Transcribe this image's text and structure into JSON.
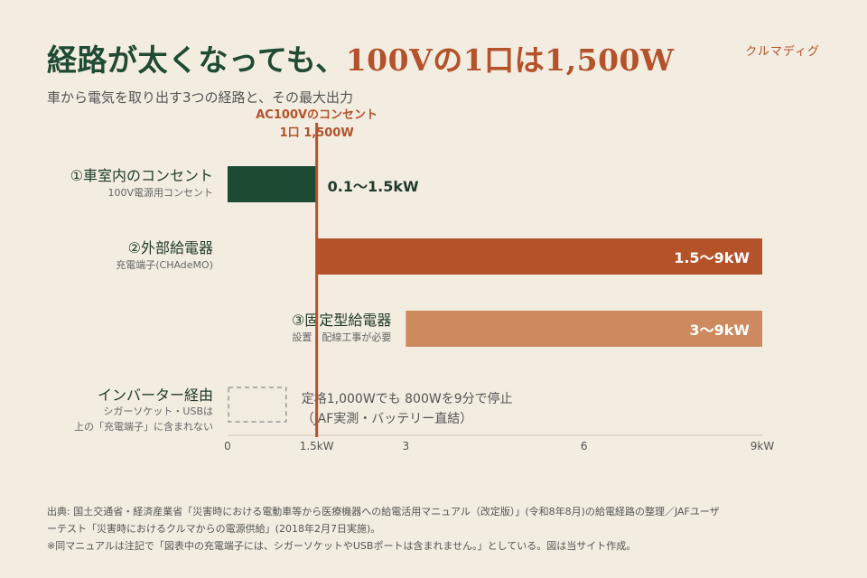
{
  "header": {
    "title_main": "経路が太くなっても、",
    "title_accent": "100Vの1口は1,500W",
    "subtitle": "車から電気を取り出す3つの経路と、その最大出力",
    "brand": "クルマディグ"
  },
  "colors": {
    "dark_green": "#1d4a33",
    "rust": "#b4522a",
    "light_orange": "#cd8a5e",
    "dashed": "#999999",
    "background": "#f3ece1"
  },
  "chart_data": {
    "type": "bar",
    "orientation": "horizontal",
    "xlim": [
      0,
      9
    ],
    "x_unit": "kW",
    "ticks": [
      {
        "value": 0,
        "label": "0"
      },
      {
        "value": 1.5,
        "label": "1.5kW"
      },
      {
        "value": 3,
        "label": "3"
      },
      {
        "value": 6,
        "label": "6"
      },
      {
        "value": 9,
        "label": "9kW"
      }
    ],
    "reference_line": {
      "value": 1.5,
      "label_line1": "AC100Vのコンセント",
      "label_line2": "1口 1,500W"
    },
    "bars": [
      {
        "name": "①車室内のコンセント",
        "sublabel": "100V電源用コンセント",
        "start": 0,
        "end": 1.5,
        "value_label": "0.1〜1.5kW",
        "style": "dark_green"
      },
      {
        "name": "②外部給電器",
        "sublabel": "充電端子(CHAdeMO)",
        "start": 1.5,
        "end": 9,
        "value_label": "1.5〜9kW",
        "style": "rust"
      },
      {
        "name": "③固定型給電器",
        "sublabel": "設置・配線工事が必要",
        "start": 3,
        "end": 9,
        "value_label": "3〜9kW",
        "style": "light_orange"
      },
      {
        "name": "インバーター経由",
        "sublabel": "シガーソケット・USBは",
        "sublabel2": "上の「充電端子」に含まれない",
        "start": 0,
        "end": 1,
        "value_label": "定格1,000Wでも 800Wを9分で停止",
        "value_label2": "（JAF実測・バッテリー直結）",
        "style": "dashed"
      }
    ]
  },
  "footer": {
    "source_line1": "出典: 国土交通省・経済産業省「災害時における電動車等から医療機器への給電活用マニュアル（改定版）」(令和8年8月)の給電経路の整理／JAFユーザ",
    "source_line2": "ーテスト「災害時におけるクルマからの電源供給」(2018年2月7日実施)。",
    "source_line3": "※同マニュアルは注記で「図表中の充電端子には、シガーソケットやUSBポートは含まれません。」としている。図は当サイト作成。"
  }
}
